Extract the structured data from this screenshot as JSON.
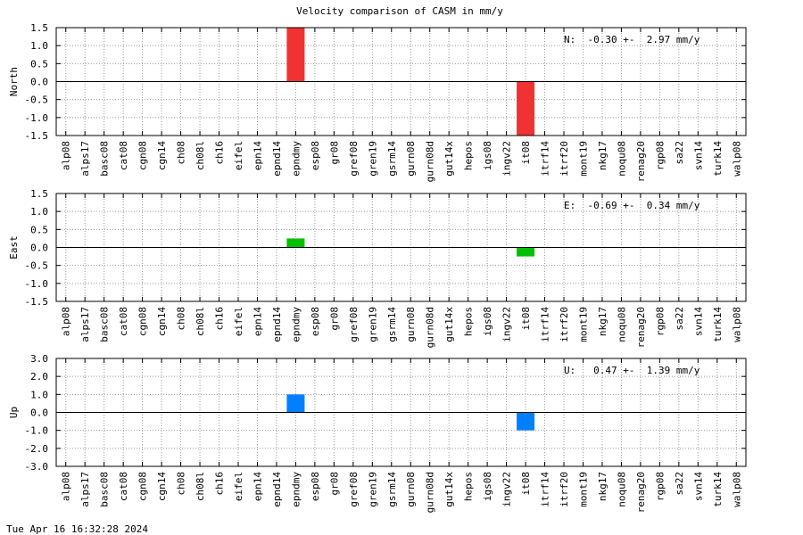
{
  "title": "Velocity comparison of CASM in mm/y",
  "footer": "Tue Apr 16 16:32:28 2024",
  "chart_data": [
    {
      "type": "bar",
      "ylabel": "North",
      "annotation": "N:  -0.30 +-  2.97 mm/y",
      "color": "#f03232",
      "grid": true,
      "categories": [
        "alp08",
        "alps17",
        "basc08",
        "cat08",
        "cgn08",
        "cgn14",
        "ch08",
        "ch08l",
        "ch16",
        "eifel",
        "epn14",
        "epnd14",
        "epndmy",
        "esp08",
        "gr08",
        "gref08",
        "gren19",
        "gsrm14",
        "gurn08",
        "gurn08d",
        "gut14x",
        "hepos",
        "igs08",
        "ingv22",
        "it08",
        "itrf14",
        "itrf20",
        "mont19",
        "nkg17",
        "noqu08",
        "renag20",
        "rgp08",
        "sa22",
        "svn14",
        "turk14",
        "walp08"
      ],
      "values": [
        null,
        null,
        null,
        null,
        null,
        null,
        null,
        null,
        null,
        null,
        null,
        null,
        1.5,
        null,
        null,
        null,
        null,
        null,
        null,
        null,
        null,
        null,
        null,
        null,
        -1.5,
        null,
        null,
        null,
        null,
        null,
        null,
        null,
        null,
        null,
        null,
        null
      ],
      "ylim": [
        -1.5,
        1.5
      ],
      "yticks": [
        -1.5,
        {
          "value": -1,
          "label": "-1.0"
        },
        -0.5,
        {
          "value": 0,
          "label": "0.0"
        },
        0.5,
        {
          "value": 1,
          "label": "1.0"
        },
        1.5
      ]
    },
    {
      "type": "bar",
      "ylabel": "East",
      "annotation": "E:  -0.69 +-  0.34 mm/y",
      "color": "#00c000",
      "grid": true,
      "categories": [
        "alp08",
        "alps17",
        "basc08",
        "cat08",
        "cgn08",
        "cgn14",
        "ch08",
        "ch08l",
        "ch16",
        "eifel",
        "epn14",
        "epnd14",
        "epndmy",
        "esp08",
        "gr08",
        "gref08",
        "gren19",
        "gsrm14",
        "gurn08",
        "gurn08d",
        "gut14x",
        "hepos",
        "igs08",
        "ingv22",
        "it08",
        "itrf14",
        "itrf20",
        "mont19",
        "nkg17",
        "noqu08",
        "renag20",
        "rgp08",
        "sa22",
        "svn14",
        "turk14",
        "walp08"
      ],
      "values": [
        null,
        null,
        null,
        null,
        null,
        null,
        null,
        null,
        null,
        null,
        null,
        null,
        0.25,
        null,
        null,
        null,
        null,
        null,
        null,
        null,
        null,
        null,
        null,
        null,
        -0.25,
        null,
        null,
        null,
        null,
        null,
        null,
        null,
        null,
        null,
        null,
        null
      ],
      "ylim": [
        -1.5,
        1.5
      ],
      "yticks": [
        -1.5,
        {
          "value": -1,
          "label": "-1.0"
        },
        -0.5,
        {
          "value": 0,
          "label": "0.0"
        },
        0.5,
        {
          "value": 1,
          "label": "1.0"
        },
        1.5
      ]
    },
    {
      "type": "bar",
      "ylabel": "Up",
      "annotation": "U:   0.47 +-  1.39 mm/y",
      "color": "#0080ff",
      "grid": true,
      "categories": [
        "alp08",
        "alps17",
        "basc08",
        "cat08",
        "cgn08",
        "cgn14",
        "ch08",
        "ch08l",
        "ch16",
        "eifel",
        "epn14",
        "epnd14",
        "epndmy",
        "esp08",
        "gr08",
        "gref08",
        "gren19",
        "gsrm14",
        "gurn08",
        "gurn08d",
        "gut14x",
        "hepos",
        "igs08",
        "ingv22",
        "it08",
        "itrf14",
        "itrf20",
        "mont19",
        "nkg17",
        "noqu08",
        "renag20",
        "rgp08",
        "sa22",
        "svn14",
        "turk14",
        "walp08"
      ],
      "values": [
        null,
        null,
        null,
        null,
        null,
        null,
        null,
        null,
        null,
        null,
        null,
        null,
        1.0,
        null,
        null,
        null,
        null,
        null,
        null,
        null,
        null,
        null,
        null,
        null,
        -1.0,
        null,
        null,
        null,
        null,
        null,
        null,
        null,
        null,
        null,
        null,
        null
      ],
      "ylim": [
        -3,
        3
      ],
      "yticks": [
        {
          "value": -3,
          "label": "-3.0"
        },
        {
          "value": -2,
          "label": "-2.0"
        },
        {
          "value": -1,
          "label": "-1.0"
        },
        {
          "value": 0,
          "label": "0.0"
        },
        {
          "value": 1,
          "label": "1.0"
        },
        {
          "value": 2,
          "label": "2.0"
        },
        {
          "value": 3,
          "label": "3.0"
        }
      ]
    }
  ]
}
